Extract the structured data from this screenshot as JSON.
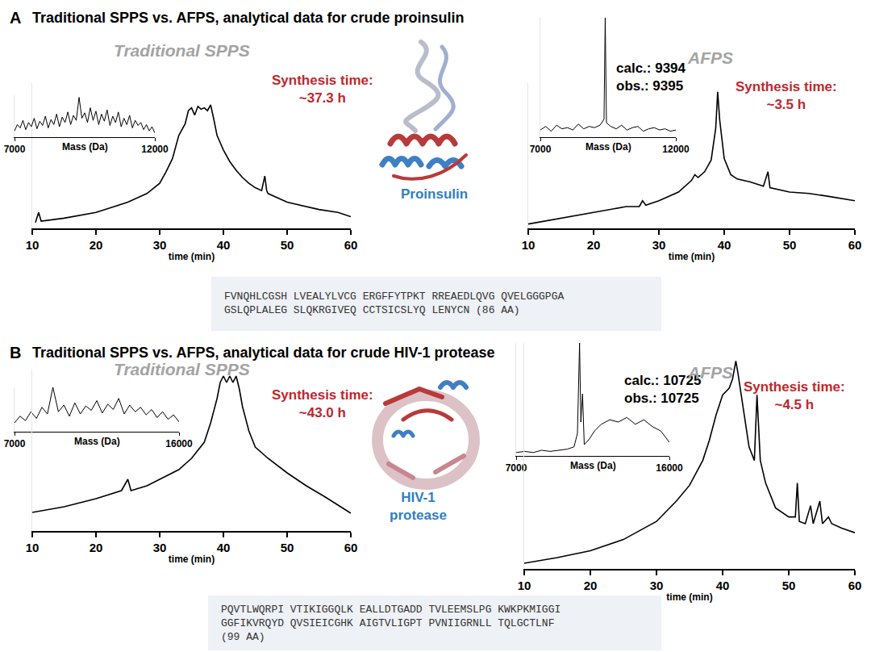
{
  "panels": [
    {
      "label": "A",
      "title": "Traditional SPPS vs. AFPS, analytical data for crude proinsulin",
      "protein": [
        "Proinsulin"
      ],
      "sequence": [
        "FVNQHLCGSH LVEALYLVCG ERGFFYTPKT RREAEDLQVG QVELGGGPGA",
        "GSLQPLALEG SLQKRGIVEQ CCTSICSLYQ LENYCN (86 AA)"
      ],
      "methods": [
        {
          "name": "Traditional SPPS",
          "time_label": "Synthesis time:",
          "time": "~37.3 h"
        },
        {
          "name": "AFPS",
          "time_label": "Synthesis time:",
          "time": "~3.5 h"
        }
      ]
    },
    {
      "label": "B",
      "title": "Traditional SPPS vs. AFPS, analytical data for crude HIV-1 protease",
      "protein": [
        "HIV-1",
        "protease"
      ],
      "sequence": [
        "PQVTLWQRPI VTIKIGGQLK EALLDTGADD TVLEEMSLPG KWKPKMIGGI",
        "GGFIKVRQYD QVSIEICGHK AIGTVLIGPT PVNIIGRNLL TQLGCTLNF",
        "(99 AA)"
      ],
      "methods": [
        {
          "name": "Traditional SPPS",
          "time_label": "Synthesis time:",
          "time": "~43.0 h"
        },
        {
          "name": "AFPS",
          "time_label": "Synthesis time:",
          "time": "~4.5 h"
        }
      ]
    }
  ],
  "chart_data": [
    {
      "type": "line",
      "xlabel": "time (min)",
      "color": "#000000",
      "grid": false,
      "tick_labels": "x",
      "xlim": [
        10,
        60
      ],
      "xticks": [
        10,
        20,
        30,
        40,
        50,
        60
      ],
      "ylim": [
        0,
        100
      ],
      "x": [
        10.5,
        11,
        11.4,
        15,
        20,
        25,
        28,
        30,
        31,
        32,
        33,
        34,
        34.5,
        35,
        35.5,
        36,
        36.5,
        37,
        37.5,
        38,
        38.5,
        39,
        40,
        41,
        42,
        43,
        44,
        45,
        46,
        46.5,
        46.8,
        47,
        50,
        52,
        53,
        55,
        58,
        60
      ],
      "values": [
        4,
        11,
        5,
        7,
        11,
        18,
        24,
        31,
        39,
        48,
        64,
        72,
        81,
        83,
        78,
        84,
        82,
        83,
        81,
        85,
        75,
        64,
        54,
        46,
        40,
        35,
        31,
        28,
        26,
        36,
        26,
        24,
        18,
        16,
        15,
        13,
        11,
        8
      ]
    },
    {
      "type": "line",
      "xlabel": "Mass (Da)",
      "color": "#000000",
      "grid": false,
      "tick_labels": "x",
      "xlim": [
        7000,
        12000
      ],
      "xticks": [
        7000,
        12000
      ],
      "ylim": [
        0,
        100
      ],
      "x": [
        7000,
        7100,
        7200,
        7300,
        7400,
        7500,
        7600,
        7700,
        7800,
        7900,
        8000,
        8100,
        8200,
        8300,
        8400,
        8500,
        8600,
        8700,
        8800,
        8900,
        9000,
        9100,
        9200,
        9300,
        9400,
        9500,
        9600,
        9700,
        9800,
        9900,
        10000,
        10100,
        10200,
        10300,
        10400,
        10500,
        10600,
        10700,
        10800,
        10900,
        11000,
        11100,
        11200,
        11300,
        11400,
        11500,
        11600,
        11700,
        11800,
        11900,
        12000
      ],
      "values": [
        15,
        30,
        22,
        40,
        18,
        35,
        25,
        45,
        20,
        38,
        28,
        50,
        22,
        42,
        30,
        55,
        25,
        48,
        35,
        60,
        30,
        52,
        40,
        95,
        45,
        58,
        35,
        70,
        40,
        62,
        30,
        55,
        38,
        65,
        28,
        50,
        35,
        60,
        25,
        45,
        30,
        52,
        22,
        40,
        28,
        35,
        18,
        30,
        15,
        25,
        10
      ]
    },
    {
      "type": "line",
      "xlabel": "time (min)",
      "color": "#000000",
      "grid": false,
      "tick_labels": "x",
      "xlim": [
        10,
        60
      ],
      "xticks": [
        10,
        20,
        30,
        40,
        50,
        60
      ],
      "ylim": [
        0,
        100
      ],
      "x": [
        10,
        15,
        20,
        25,
        27,
        27.5,
        28,
        30,
        33,
        35,
        35.5,
        36,
        37,
        38,
        38.7,
        39,
        39.3,
        40,
        41,
        42,
        44,
        46,
        46.7,
        47,
        50,
        53,
        56,
        60
      ],
      "values": [
        3,
        7,
        11,
        15,
        15,
        19,
        16,
        19,
        25,
        33,
        37,
        35,
        39,
        47,
        69,
        94,
        75,
        48,
        37,
        34,
        32,
        29,
        39,
        28,
        25,
        24,
        22,
        19
      ]
    },
    {
      "type": "line",
      "xlabel": "Mass (Da)",
      "color": "#000000",
      "grid": false,
      "tick_labels": "x",
      "xlim": [
        7000,
        12000
      ],
      "xticks": [
        7000,
        12000
      ],
      "ylim": [
        0,
        100
      ],
      "annotations": [
        "calc.: 9394",
        "obs.: 9395"
      ],
      "x": [
        7000,
        7200,
        7400,
        7600,
        7800,
        8000,
        8200,
        8400,
        8600,
        8800,
        9000,
        9200,
        9350,
        9394,
        9440,
        9600,
        9800,
        10000,
        10200,
        10400,
        10600,
        10800,
        11000,
        11200,
        11400,
        11600,
        11800,
        12000
      ],
      "values": [
        6,
        9,
        5,
        10,
        7,
        8,
        6,
        11,
        7,
        9,
        8,
        10,
        15,
        100,
        12,
        9,
        7,
        10,
        6,
        8,
        9,
        5,
        7,
        8,
        6,
        7,
        5,
        6
      ]
    },
    {
      "type": "line",
      "xlabel": "Mass (Da)",
      "color": "#000000",
      "grid": false,
      "tick_labels": "x",
      "xlim": [
        7000,
        16000
      ],
      "xticks": [
        7000,
        16000
      ],
      "ylim": [
        0,
        100
      ],
      "x": [
        7000,
        7300,
        7600,
        7900,
        8200,
        8500,
        8800,
        9100,
        9400,
        9700,
        10000,
        10300,
        10600,
        10900,
        11200,
        11500,
        11800,
        12100,
        12400,
        12700,
        13000,
        13300,
        13600,
        13900,
        14200,
        14500,
        14800,
        15100,
        15400,
        15700,
        16000
      ],
      "values": [
        20,
        35,
        25,
        45,
        30,
        55,
        40,
        100,
        45,
        60,
        35,
        65,
        40,
        58,
        48,
        70,
        42,
        62,
        50,
        75,
        40,
        60,
        45,
        55,
        38,
        50,
        32,
        45,
        28,
        38,
        22
      ]
    },
    {
      "type": "line",
      "xlabel": "time (min)",
      "color": "#000000",
      "grid": false,
      "tick_labels": "x",
      "xlim": [
        10,
        60
      ],
      "xticks": [
        10,
        20,
        30,
        40,
        50,
        60
      ],
      "ylim": [
        0,
        100
      ],
      "x": [
        10,
        15,
        20,
        24,
        25,
        25.5,
        28,
        30,
        33,
        35,
        37,
        38,
        39,
        39.5,
        40,
        40.5,
        41,
        41.5,
        42,
        42.5,
        43,
        44,
        45,
        47,
        50,
        53,
        56,
        60
      ],
      "values": [
        11.5,
        15,
        20,
        25,
        32,
        25,
        28,
        32,
        38,
        45,
        55,
        67,
        82,
        92,
        96,
        92,
        96,
        92,
        96,
        88,
        77,
        62,
        52,
        45,
        36,
        28,
        21,
        11
      ]
    },
    {
      "type": "line",
      "xlabel": "Mass (Da)",
      "color": "#000000",
      "grid": false,
      "tick_labels": "x",
      "xlim": [
        7000,
        16000
      ],
      "xticks": [
        7000,
        16000
      ],
      "ylim": [
        0,
        100
      ],
      "annotations": [
        "calc.: 10725",
        "obs.: 10725"
      ],
      "x": [
        7000,
        7500,
        8000,
        8500,
        9000,
        9500,
        10000,
        10400,
        10600,
        10725,
        10800,
        10900,
        11000,
        11300,
        11600,
        12000,
        12500,
        13000,
        13500,
        14000,
        14500,
        15000,
        15500,
        16000
      ],
      "values": [
        3,
        4,
        3,
        5,
        4,
        5,
        6,
        8,
        20,
        100,
        30,
        55,
        10,
        15,
        22,
        28,
        32,
        30,
        34,
        28,
        32,
        26,
        22,
        12
      ]
    },
    {
      "type": "line",
      "xlabel": "time (min)",
      "color": "#000000",
      "grid": false,
      "tick_labels": "x",
      "xlim": [
        10,
        60
      ],
      "xticks": [
        10,
        20,
        30,
        40,
        50,
        60
      ],
      "ylim": [
        0,
        100
      ],
      "x": [
        10,
        15,
        20,
        25,
        30,
        33,
        35,
        37,
        38,
        39,
        40,
        41,
        41.5,
        42,
        42.3,
        43,
        44,
        44.8,
        45.2,
        45.7,
        46.5,
        48,
        50,
        51,
        51.3,
        51.6,
        52.5,
        53.3,
        53.7,
        54.7,
        55.1,
        56,
        56.5,
        58,
        60
      ],
      "values": [
        2.5,
        5,
        8,
        13,
        21,
        30,
        37,
        48,
        57,
        68,
        77,
        80,
        84,
        92,
        87,
        73,
        54,
        48,
        77,
        48,
        38,
        27,
        23,
        23,
        38,
        21,
        20,
        28,
        20,
        30,
        20,
        23,
        20,
        18,
        16
      ]
    }
  ]
}
